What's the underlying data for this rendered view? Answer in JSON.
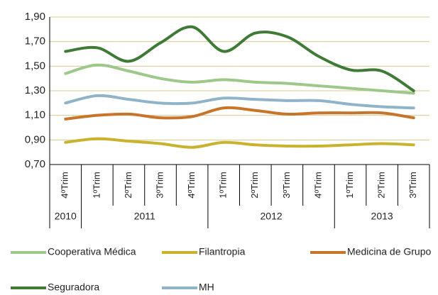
{
  "chart_data": {
    "type": "line",
    "categories": [
      "4ºTrim",
      "1ºTrim",
      "2ºTrim",
      "3ºTrim",
      "4ºTrim",
      "1ºTrim",
      "2ºTrim",
      "3ºTrim",
      "4ºTrim",
      "1ºTrim",
      "2ºTrim",
      "3ºTrim"
    ],
    "year_groups": [
      {
        "label": "2010",
        "count": 1
      },
      {
        "label": "2011",
        "count": 4
      },
      {
        "label": "2012",
        "count": 4
      },
      {
        "label": "2013",
        "count": 3
      }
    ],
    "series": [
      {
        "name": "Cooperativa Médica",
        "color": "#9dc88a",
        "values": [
          1.44,
          1.51,
          1.46,
          1.4,
          1.37,
          1.39,
          1.37,
          1.36,
          1.34,
          1.32,
          1.3,
          1.28
        ]
      },
      {
        "name": "Filantropia",
        "color": "#c9b32e",
        "values": [
          0.88,
          0.91,
          0.89,
          0.87,
          0.84,
          0.88,
          0.86,
          0.85,
          0.85,
          0.86,
          0.87,
          0.86
        ]
      },
      {
        "name": "Medicina de Grupo",
        "color": "#c8752b",
        "values": [
          1.07,
          1.1,
          1.11,
          1.08,
          1.09,
          1.16,
          1.14,
          1.11,
          1.12,
          1.12,
          1.12,
          1.08
        ]
      },
      {
        "name": "Seguradora",
        "color": "#3f7a36",
        "values": [
          1.62,
          1.65,
          1.54,
          1.69,
          1.82,
          1.62,
          1.77,
          1.74,
          1.58,
          1.47,
          1.46,
          1.3
        ]
      },
      {
        "name": "MH",
        "color": "#8fb3c9",
        "values": [
          1.2,
          1.26,
          1.23,
          1.2,
          1.2,
          1.24,
          1.23,
          1.22,
          1.22,
          1.19,
          1.17,
          1.16
        ]
      }
    ],
    "ylim": [
      0.7,
      1.9
    ],
    "yticks": [
      {
        "value": 0.7,
        "label": "0,70"
      },
      {
        "value": 0.9,
        "label": "0,90"
      },
      {
        "value": 1.1,
        "label": "1,10"
      },
      {
        "value": 1.3,
        "label": "1,30"
      },
      {
        "value": 1.5,
        "label": "1,50"
      },
      {
        "value": 1.7,
        "label": "1,70"
      },
      {
        "value": 1.9,
        "label": "1,90"
      }
    ],
    "grid": true
  }
}
